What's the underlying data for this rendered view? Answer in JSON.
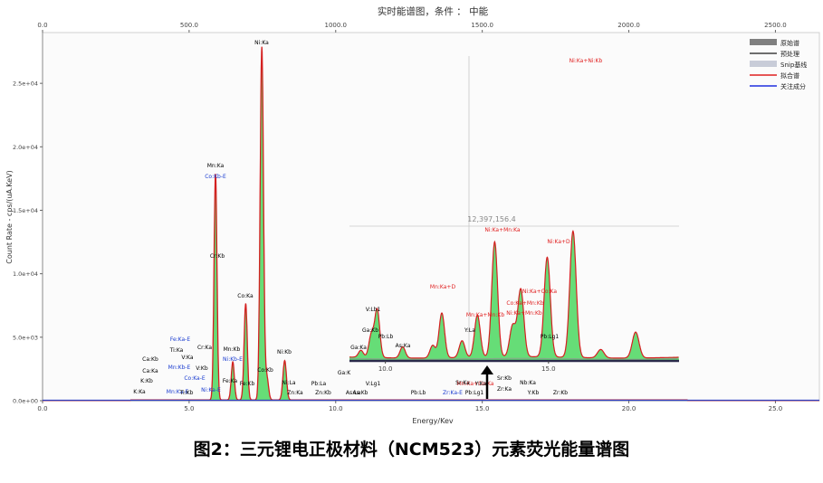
{
  "figure": {
    "caption": "图2：三元锂电正极材料（NCM523）元素荧光能量谱图"
  },
  "chart_data": {
    "type": "line",
    "title": "实时能谱图，条件 ： 中能",
    "xlabel": "Energy/Kev",
    "ylabel": "Count Rate - cps/(uA.KeV)",
    "xlim": [
      0,
      26.5
    ],
    "ylim": [
      0,
      29000
    ],
    "x_ticks": [
      "0.0",
      "5.0",
      "10.0",
      "15.0",
      "20.0",
      "25.0"
    ],
    "x_tick_values": [
      0,
      5,
      10,
      15,
      20,
      25
    ],
    "top_ticks": [
      "0.0",
      "500.0",
      "1000.0",
      "1500.0",
      "2000.0",
      "2500.0"
    ],
    "top_tick_values": [
      0,
      500,
      1000,
      1500,
      2000,
      2500
    ],
    "y_ticks": [
      "0.0e+00",
      "5.0e+03",
      "1.0e+04",
      "1.5e+04",
      "2.0e+04",
      "2.5e+04"
    ],
    "y_tick_values": [
      0,
      5000,
      10000,
      15000,
      20000,
      25000
    ],
    "grid": false,
    "legend_position": "top-right",
    "legend": [
      {
        "label": "原始谱",
        "color": "#808080"
      },
      {
        "label": "预处理",
        "color": "#404040"
      },
      {
        "label": "Snip基线",
        "color": "#c8ccd8"
      },
      {
        "label": "拟合谱",
        "color": "#e02020"
      },
      {
        "label": "关注成分",
        "color": "#2030e0"
      }
    ],
    "fill_color": "#66dd77",
    "fit_color": "#d42020",
    "baseline_color": "#3040c0",
    "peaks": [
      {
        "element": "Mn:Ka",
        "energy": 5.9,
        "height": 17800
      },
      {
        "element": "Mn:Kb",
        "energy": 6.49,
        "height": 3000
      },
      {
        "element": "Co:Ka",
        "energy": 6.93,
        "height": 7600
      },
      {
        "element": "Ni:Ka",
        "energy": 7.48,
        "height": 27800
      },
      {
        "element": "Co:Kb",
        "energy": 7.65,
        "height": 1800
      },
      {
        "element": "Ni:Kb",
        "energy": 8.26,
        "height": 3100
      }
    ],
    "inset": {
      "x_ticks": [
        "10.0",
        "15.0"
      ],
      "x_tick_values": [
        10,
        15
      ],
      "xlim": [
        8.9,
        19.0
      ],
      "ylim": [
        0,
        9600
      ],
      "crosshair_readout": "12,397,156.4",
      "peaks": [
        {
          "element": "V:Lb1",
          "energy": 9.75,
          "height": 3400
        },
        {
          "element": "Ga:Ka",
          "energy": 9.25,
          "height": 500
        },
        {
          "element": "Zn:Kb",
          "energy": 9.57,
          "height": 1600
        },
        {
          "element": "As:Ka",
          "energy": 10.53,
          "height": 800
        },
        {
          "element": "V:Lg1",
          "energy": 11.45,
          "height": 900
        },
        {
          "element": "As:Kb",
          "energy": 11.73,
          "height": 3200
        },
        {
          "element": "Mn:Ka+Mn:Kb",
          "energy": 12.35,
          "height": 1200
        },
        {
          "element": "Mn:Ka+Co:Ka",
          "energy": 12.82,
          "height": 3000
        },
        {
          "element": "Ni:Ka+Mn:Ka",
          "energy": 13.35,
          "height": 8200
        },
        {
          "element": "Zr:Ka-E",
          "energy": 13.9,
          "height": 2200
        },
        {
          "element": "Ni:Ka+Mn:Kb",
          "energy": 14.15,
          "height": 4800
        },
        {
          "element": "Ni:Ka+D",
          "energy": 14.96,
          "height": 7100
        },
        {
          "element": "Zr:Ka",
          "energy": 15.75,
          "height": 9000
        },
        {
          "element": "Nb:Ka",
          "energy": 16.6,
          "height": 600
        },
        {
          "element": "Zr:Kb",
          "energy": 17.67,
          "height": 1850
        }
      ]
    },
    "annotations": [
      {
        "text": "Ni:Ka",
        "color": "#000000"
      },
      {
        "text": "Mn:Ka",
        "color": "#000000"
      },
      {
        "text": "Co:Kb-E",
        "color": "#1a3cd0"
      },
      {
        "text": "Cr:Kb",
        "color": "#000000"
      },
      {
        "text": "Co:Ka",
        "color": "#000000"
      },
      {
        "text": "Mn:Kb",
        "color": "#000000"
      },
      {
        "text": "Ni:Kb-E",
        "color": "#1a3cd0"
      },
      {
        "text": "Fe:Ka",
        "color": "#000000"
      },
      {
        "text": "Ni:Ka-E",
        "color": "#1a3cd0"
      },
      {
        "text": "Co:Kb",
        "color": "#000000"
      },
      {
        "text": "Fe:Kb",
        "color": "#000000"
      },
      {
        "text": "Ni:Kb",
        "color": "#000000"
      },
      {
        "text": "Ni:La",
        "color": "#000000"
      },
      {
        "text": "Zn:Ka",
        "color": "#000000"
      },
      {
        "text": "Fe:Ka-E",
        "color": "#1a3cd0"
      },
      {
        "text": "Ti:Ka",
        "color": "#000000"
      },
      {
        "text": "Cr:Ka",
        "color": "#000000"
      },
      {
        "text": "V:Ka",
        "color": "#000000"
      },
      {
        "text": "Ca:Kb",
        "color": "#000000"
      },
      {
        "text": "Mn:Kb-E",
        "color": "#1a3cd0"
      },
      {
        "text": "V:Kb",
        "color": "#000000"
      },
      {
        "text": "Ca:Ka",
        "color": "#000000"
      },
      {
        "text": "Co:Ka-E",
        "color": "#1a3cd0"
      },
      {
        "text": "K:Kb",
        "color": "#000000"
      },
      {
        "text": "Mn:Ka-E",
        "color": "#1a3cd0"
      },
      {
        "text": "K:Ka",
        "color": "#000000"
      },
      {
        "text": "Ti:Kb",
        "color": "#000000"
      },
      {
        "text": "V:Lb1",
        "color": "#000000"
      },
      {
        "text": "Ga:K",
        "color": "#000000"
      },
      {
        "text": "Ga:Ka",
        "color": "#000000"
      },
      {
        "text": "Pb:La",
        "color": "#000000"
      },
      {
        "text": "V:Lg1",
        "color": "#000000"
      },
      {
        "text": "Zn:Kb",
        "color": "#000000"
      },
      {
        "text": "As:La",
        "color": "#000000"
      },
      {
        "text": "As:Kb",
        "color": "#000000"
      },
      {
        "text": "Pb:Lb",
        "color": "#000000"
      },
      {
        "text": "Mn:Ka+Co:Ka",
        "color": "#e02020"
      },
      {
        "text": "Zr:Ka-E",
        "color": "#1a3cd0"
      },
      {
        "text": "Pb:Lg1",
        "color": "#000000"
      },
      {
        "text": "Sr:Ka",
        "color": "#000000"
      },
      {
        "text": "Y:Ka",
        "color": "#000000"
      },
      {
        "text": "Sr:Kb",
        "color": "#000000"
      },
      {
        "text": "Zr:Ka",
        "color": "#000000"
      },
      {
        "text": "Nb:Ka",
        "color": "#000000"
      },
      {
        "text": "Y:Kb",
        "color": "#000000"
      },
      {
        "text": "Zr:Kb",
        "color": "#000000"
      },
      {
        "text": "Ni:Ka+Ni:Kb",
        "color": "#e02020"
      },
      {
        "text": "Ni:Ka+Mn:Ka",
        "color": "#e02020"
      },
      {
        "text": "Ni:Ka+D",
        "color": "#e02020"
      },
      {
        "text": "Ni:Ka+Co:Ka",
        "color": "#e02020"
      },
      {
        "text": "Mn:Ka+D",
        "color": "#e02020"
      },
      {
        "text": "Mn:Ka+Mn:Kb",
        "color": "#e02020"
      },
      {
        "text": "Ni:Ka+Mn:Kb",
        "color": "#e02020"
      },
      {
        "text": "Co:Ka+Mn:Kb",
        "color": "#e02020"
      },
      {
        "text": "Ga:Kb",
        "color": "#000000"
      },
      {
        "text": "As:Ka",
        "color": "#000000"
      },
      {
        "text": "Y:La",
        "color": "#000000"
      },
      {
        "text": "Pb:Lb",
        "color": "#000000"
      },
      {
        "text": "Pb:Lg1",
        "color": "#000000"
      }
    ]
  }
}
